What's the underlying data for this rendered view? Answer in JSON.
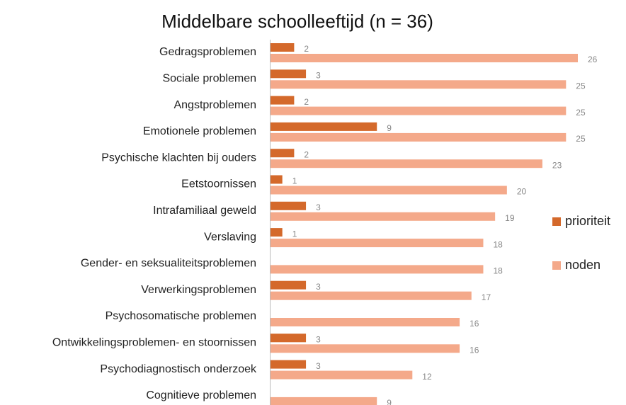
{
  "chart_data": {
    "type": "hbar",
    "title": "Middelbare schoolleeftijd (n = 36)",
    "categories": [
      "Gedragsproblemen",
      "Sociale problemen",
      "Angstproblemen",
      "Emotionele problemen",
      "Psychische klachten bij ouders",
      "Eetstoornissen",
      "Intrafamiliaal geweld",
      "Verslaving",
      "Gender- en seksualiteitsproblemen",
      "Verwerkingsproblemen",
      "Psychosomatische problemen",
      "Ontwikkelingsproblemen- en stoornissen",
      "Psychodiagnostisch onderzoek",
      "Cognitieve problemen"
    ],
    "series": [
      {
        "name": "prioriteit",
        "color": "#d4692b",
        "values": [
          2,
          3,
          2,
          9,
          2,
          1,
          3,
          1,
          null,
          3,
          null,
          3,
          3,
          null
        ]
      },
      {
        "name": "noden",
        "color": "#f4a98a",
        "values": [
          26,
          25,
          25,
          25,
          23,
          20,
          19,
          18,
          18,
          17,
          16,
          16,
          12,
          9
        ]
      }
    ],
    "xlim": [
      0,
      26
    ],
    "legend": "right"
  }
}
